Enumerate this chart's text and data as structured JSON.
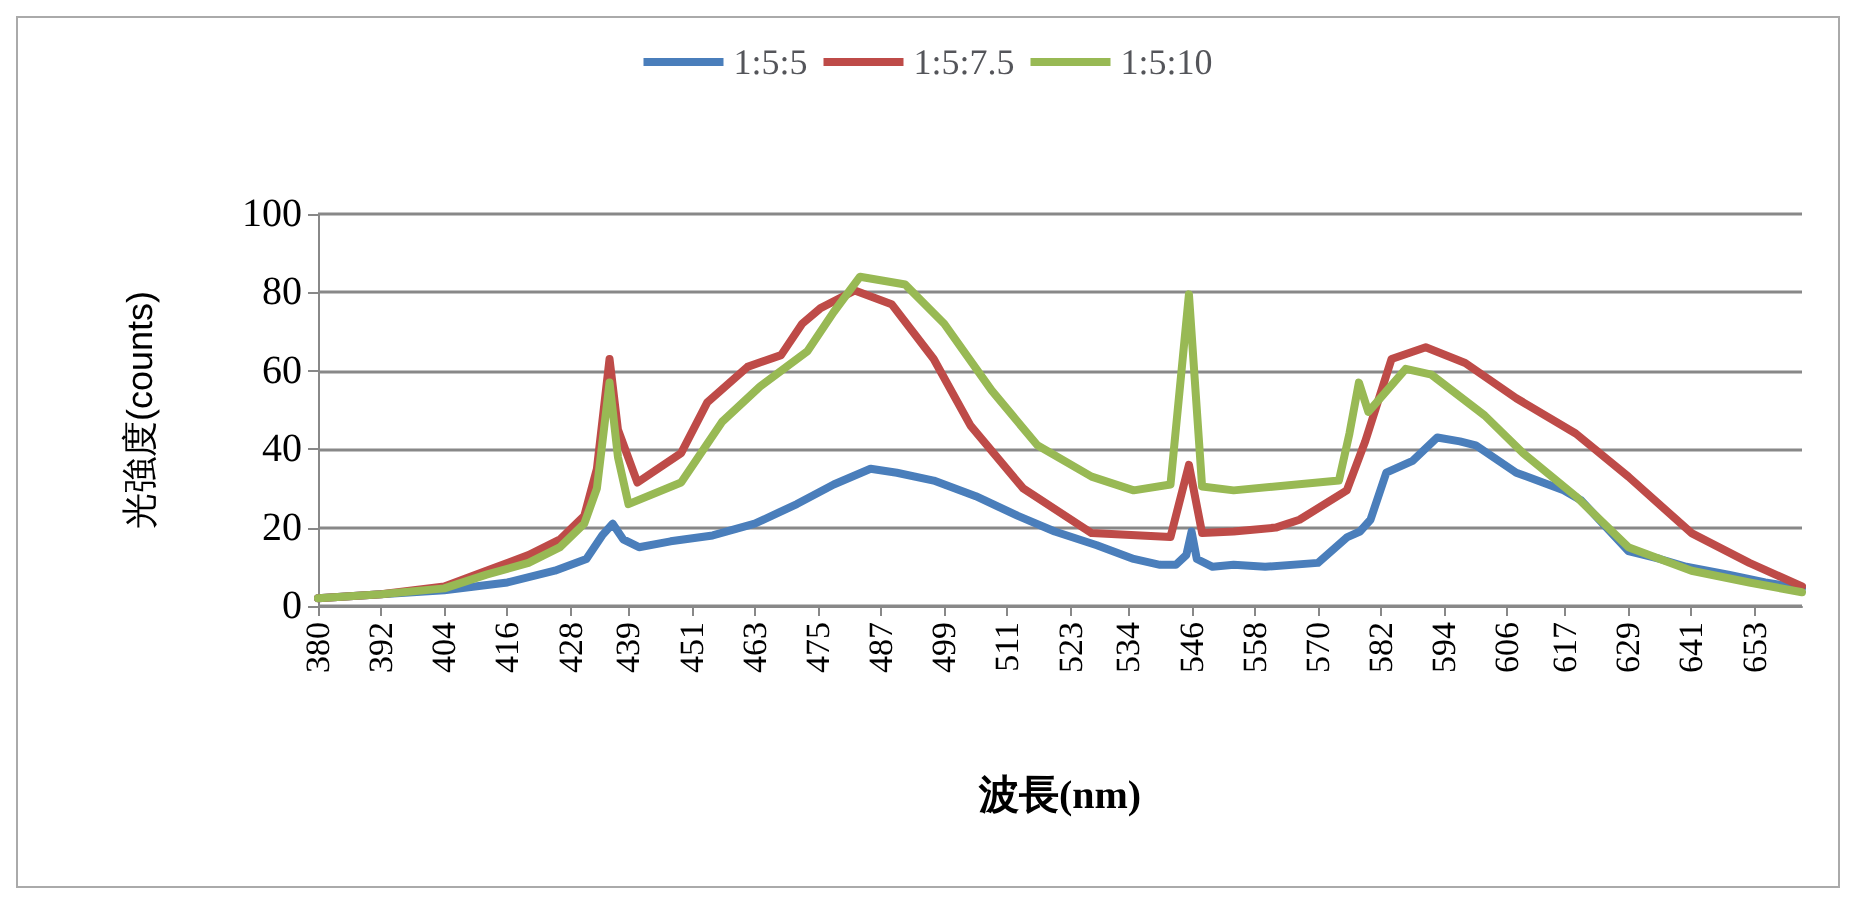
{
  "chart_data": {
    "type": "line",
    "xlabel": "波長(nm)",
    "ylabel": "光強度(counts)",
    "xlim": [
      380,
      662
    ],
    "ylim": [
      0,
      100
    ],
    "xticks": [
      380,
      392,
      404,
      416,
      428,
      439,
      451,
      463,
      475,
      487,
      499,
      511,
      523,
      534,
      546,
      558,
      570,
      582,
      594,
      606,
      617,
      629,
      641,
      653
    ],
    "yticks": [
      0,
      20,
      40,
      60,
      80,
      100
    ],
    "grid": "y",
    "legend": "top",
    "marker": "none",
    "line_style": "solid",
    "series": [
      {
        "name": "1:5:5",
        "color": "#4a7ebb",
        "x": [
          380,
          392,
          404,
          416,
          425,
          431,
          434,
          436,
          438,
          441,
          447,
          455,
          463,
          471,
          478,
          485,
          490,
          497,
          505,
          513,
          520,
          528,
          535,
          540,
          543,
          545,
          546,
          547,
          550,
          554,
          560,
          570,
          575.5,
          578,
          580,
          583,
          588,
          592.7,
          597,
          600,
          607.7,
          616.7,
          620,
          629,
          635,
          640,
          648,
          655,
          662
        ],
        "values": [
          2,
          3,
          4,
          6,
          9,
          12,
          18,
          21,
          17,
          15,
          16.5,
          18,
          21,
          26,
          31,
          35,
          34,
          32,
          28,
          23,
          19,
          15.5,
          12,
          10.5,
          10.5,
          13,
          19,
          12,
          10,
          10.5,
          10,
          11,
          17.5,
          19,
          22,
          34,
          37,
          43,
          42,
          41,
          34,
          29.5,
          27,
          14,
          12,
          10,
          8,
          6,
          4.5
        ]
      },
      {
        "name": "1:5:7.5",
        "color": "#be4b48",
        "x": [
          380,
          392,
          404,
          412,
          420,
          426,
          430.6,
          433,
          435.4,
          437,
          440.7,
          449,
          454,
          461.6,
          468,
          472,
          475.5,
          482,
          489,
          497,
          504,
          514,
          527,
          542,
          545.5,
          548,
          554,
          562,
          566.5,
          575.5,
          579,
          584,
          590.5,
          598,
          607.7,
          619,
          629,
          641,
          652,
          662
        ],
        "values": [
          2,
          3,
          5,
          9,
          13,
          17,
          23,
          35,
          63,
          45,
          31.5,
          39,
          52,
          61,
          64,
          72,
          76,
          80.5,
          77,
          63,
          46,
          30,
          18.6,
          17.6,
          36,
          18.6,
          19,
          20,
          22,
          29.5,
          42,
          63,
          66,
          62,
          53,
          44,
          33,
          18.6,
          11,
          5
        ]
      },
      {
        "name": "1:5:10",
        "color": "#98b954",
        "x": [
          380,
          392,
          404,
          412,
          420,
          426,
          430.6,
          433,
          435.4,
          437,
          439,
          449,
          456.8,
          464,
          473,
          478,
          483,
          491.6,
          499,
          508,
          516.7,
          527,
          535,
          542,
          545.5,
          548,
          554,
          574,
          576,
          577.8,
          579.6,
          586.7,
          591.6,
          601.7,
          609,
          619,
          629,
          641,
          652,
          662
        ],
        "values": [
          2,
          3,
          4.5,
          8,
          11,
          15,
          21,
          30,
          57,
          38,
          26,
          31.5,
          47,
          56,
          65,
          75,
          84,
          82,
          72,
          55,
          41,
          33,
          29.5,
          31,
          79.5,
          30.5,
          29.5,
          32,
          44,
          57,
          49.5,
          60.5,
          59,
          48.6,
          39,
          28,
          15,
          9,
          6,
          3.5
        ]
      }
    ]
  }
}
